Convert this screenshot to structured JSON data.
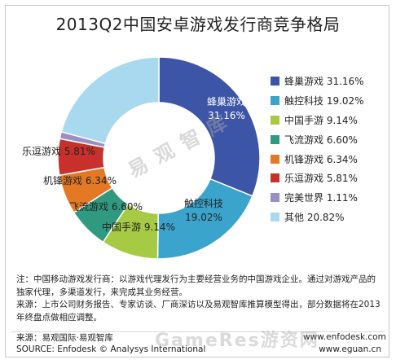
{
  "title": "2013Q2中国安卓游戏发行商竞争格局",
  "chart_data": {
    "type": "pie",
    "subtype": "donut",
    "title": "2013Q2中国安卓游戏发行商竞争格局",
    "series": [
      {
        "name": "蜂巢游戏",
        "value": 31.16,
        "label": "31.16%",
        "color": "#3d55a6",
        "label_color": "#ffffff",
        "inside_label": "蜂巢游戏\n31.16%"
      },
      {
        "name": "触控科技",
        "value": 19.02,
        "label": "19.02%",
        "color": "#3ba4cc",
        "label_color": "#222222",
        "inside_label": "触控科技\n19.02%"
      },
      {
        "name": "中国手游",
        "value": 9.14,
        "label": "9.14%",
        "color": "#a6ca44",
        "label_color": "#222222",
        "inside_label": "中国手游 9.14%"
      },
      {
        "name": "飞流游戏",
        "value": 6.6,
        "label": "6.60%",
        "color": "#2f9a7f",
        "label_color": "#222222",
        "inside_label": "飞流游戏 6.60%"
      },
      {
        "name": "机锋游戏",
        "value": 6.34,
        "label": "6.34%",
        "color": "#e37924",
        "label_color": "#222222",
        "inside_label": "机锋游戏 6.34%"
      },
      {
        "name": "乐逗游戏",
        "value": 5.81,
        "label": "5.81%",
        "color": "#c8302b",
        "label_color": "#222222",
        "inside_label": "乐逗游戏 5.81%"
      },
      {
        "name": "完美世界",
        "value": 1.11,
        "label": "1.11%",
        "color": "#9a8fc3",
        "label_color": "#222222",
        "inside_label": ""
      },
      {
        "name": "其他",
        "value": 20.82,
        "label": "20.82%",
        "color": "#a9d9ee",
        "label_color": "#222222",
        "inside_label": ""
      }
    ],
    "legend_position": "right"
  },
  "legend": [
    {
      "text": "蜂巢游戏 31.16%",
      "color": "#3d55a6"
    },
    {
      "text": "触控科技 19.02%",
      "color": "#3ba4cc"
    },
    {
      "text": "中国手游 9.14%",
      "color": "#a6ca44"
    },
    {
      "text": "飞流游戏 6.60%",
      "color": "#2f9a7f"
    },
    {
      "text": "机锋游戏 6.34%",
      "color": "#e37924"
    },
    {
      "text": "乐逗游戏 5.81%",
      "color": "#c8302b"
    },
    {
      "text": "完美世界 1.11%",
      "color": "#9a8fc3"
    },
    {
      "text": "其他 20.82%",
      "color": "#a9d9ee"
    }
  ],
  "notes": {
    "note": "注：中国移动游戏发行商：以游戏代理发行为主要经营业务的中国游戏企业。通过对游戏产品的独家代理，多渠道发行，来完成其业务经营。",
    "source_note": "来源：上市公司财务报告、专家访谈、厂商深访以及易观智库推算模型得出，部分数据将在2013年终盘点做相应调整。"
  },
  "footer": {
    "source_cn": "来源：易观国际·易观智库",
    "source_en": "SOURCE: Enfodesk © Analysys International",
    "url1": "www.enfodesk.com",
    "url2": "www.eguan.cn"
  },
  "watermarks": {
    "center": "易 观 智 库",
    "gamerres": "GameRes游资网"
  }
}
